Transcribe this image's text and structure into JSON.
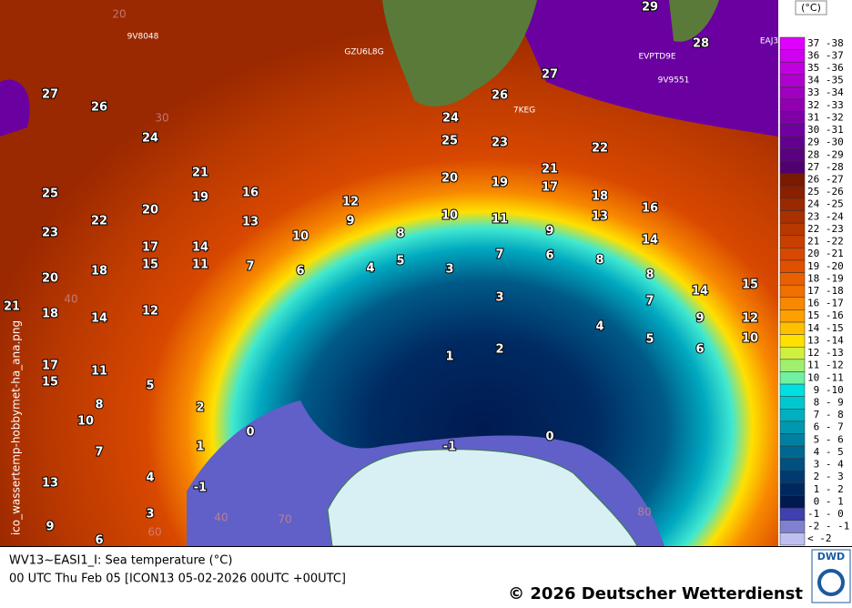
{
  "map": {
    "labels": [
      29,
      28,
      27,
      26,
      24,
      25,
      23,
      22,
      27,
      26,
      24,
      21,
      20,
      19,
      21,
      17,
      18,
      16,
      25,
      19,
      16,
      12,
      20,
      22,
      13,
      9,
      10,
      11,
      9,
      13,
      14,
      23,
      10,
      8,
      17,
      14,
      7,
      6,
      8,
      15,
      11,
      7,
      6,
      4,
      5,
      3,
      8,
      20,
      18,
      15,
      14,
      3,
      7,
      21,
      18,
      14,
      12,
      9,
      12,
      4,
      5,
      10,
      6,
      2,
      1,
      17,
      11,
      15,
      5,
      8,
      2,
      10,
      0,
      0,
      1,
      -1,
      7,
      4,
      13,
      -1,
      3,
      9,
      6
    ],
    "stations": [
      "9V8048",
      "GZU6L8G",
      "EVPTD9E",
      "9V9551",
      "7KEG",
      "EAJ3"
    ],
    "grid_labels": [
      "20",
      "30",
      "40",
      "40",
      "70",
      "80",
      "60"
    ],
    "side_text": "ico_wassertemp-hobbymet-ha_ana.png"
  },
  "legend": {
    "unit": "(°C)",
    "entries": [
      {
        "label": "37 -38",
        "color": "#e000ff"
      },
      {
        "label": "36 -37",
        "color": "#d000f0"
      },
      {
        "label": "35 -36",
        "color": "#c000e0"
      },
      {
        "label": "34 -35",
        "color": "#b000d0"
      },
      {
        "label": "33 -34",
        "color": "#a000c0"
      },
      {
        "label": "32 -33",
        "color": "#9000b0"
      },
      {
        "label": "31 -32",
        "color": "#8000a8"
      },
      {
        "label": "30 -31",
        "color": "#7000a0"
      },
      {
        "label": "29 -30",
        "color": "#640090"
      },
      {
        "label": "28 -29",
        "color": "#5a0080"
      },
      {
        "label": "27 -28",
        "color": "#500070"
      },
      {
        "label": "26 -27",
        "color": "#7a1a00"
      },
      {
        "label": "25 -26",
        "color": "#8a2000"
      },
      {
        "label": "24 -25",
        "color": "#9a2800"
      },
      {
        "label": "23 -24",
        "color": "#aa3000"
      },
      {
        "label": "22 -23",
        "color": "#b83800"
      },
      {
        "label": "21 -22",
        "color": "#c84000"
      },
      {
        "label": "20 -21",
        "color": "#d84800"
      },
      {
        "label": "19 -20",
        "color": "#e05000"
      },
      {
        "label": "18 -19",
        "color": "#e86000"
      },
      {
        "label": "17 -18",
        "color": "#f07000"
      },
      {
        "label": "16 -17",
        "color": "#f88800"
      },
      {
        "label": "15 -16",
        "color": "#ffa000"
      },
      {
        "label": "14 -15",
        "color": "#ffc000"
      },
      {
        "label": "13 -14",
        "color": "#ffe000"
      },
      {
        "label": "12 -13",
        "color": "#d0f040"
      },
      {
        "label": "11 -12",
        "color": "#a0f070"
      },
      {
        "label": "10 -11",
        "color": "#70f0a0"
      },
      {
        "label": " 9 -10",
        "color": "#00e0e0"
      },
      {
        "label": " 8 - 9",
        "color": "#00c8d0"
      },
      {
        "label": " 7 - 8",
        "color": "#00b0c0"
      },
      {
        "label": " 6 - 7",
        "color": "#0098b0"
      },
      {
        "label": " 5 - 6",
        "color": "#0080a0"
      },
      {
        "label": " 4 - 5",
        "color": "#006890"
      },
      {
        "label": " 3 - 4",
        "color": "#005080"
      },
      {
        "label": " 2 - 3",
        "color": "#003a70"
      },
      {
        "label": " 1 - 2",
        "color": "#002860"
      },
      {
        "label": " 0 - 1",
        "color": "#001a50"
      },
      {
        "label": "-1 - 0",
        "color": "#4040b0"
      },
      {
        "label": "-2 - -1",
        "color": "#8080d0"
      },
      {
        "label": "< -2",
        "color": "#c0c0f0"
      }
    ]
  },
  "footer": {
    "line1": "WV13~EASI1_I: Sea temperature (°C)",
    "line2": "00 UTC  Thu Feb 05 [ICON13 05-02-2026 00UTC +00UTC]",
    "copyright": "© 2026 Deutscher Wetterdienst",
    "logo": "DWD"
  }
}
